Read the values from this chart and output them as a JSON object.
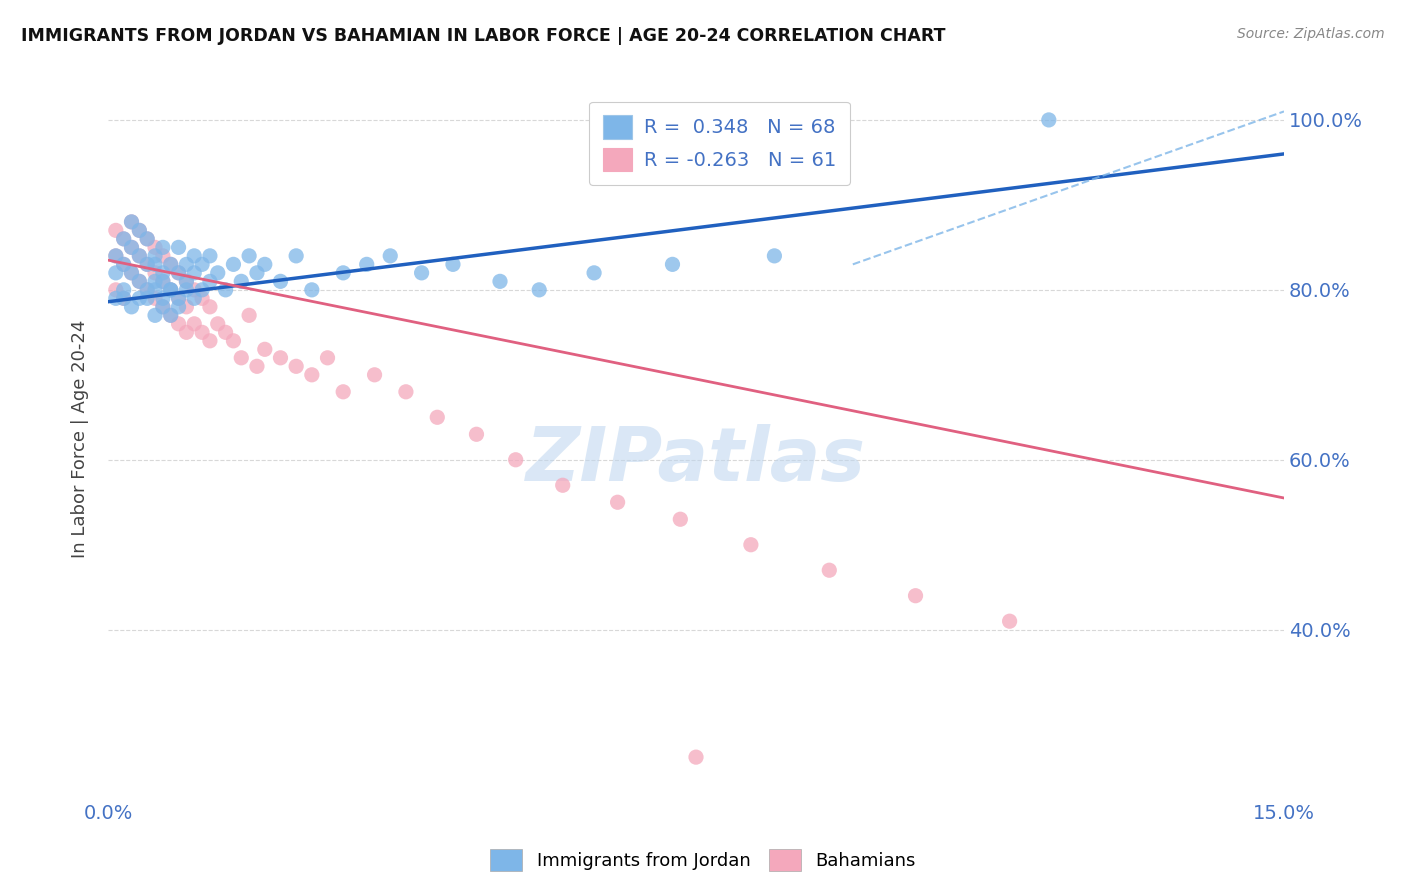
{
  "title": "IMMIGRANTS FROM JORDAN VS BAHAMIAN IN LABOR FORCE | AGE 20-24 CORRELATION CHART",
  "source": "Source: ZipAtlas.com",
  "ylabel": "In Labor Force | Age 20-24",
  "xlim": [
    0.0,
    0.15
  ],
  "ylim": [
    0.2,
    1.05
  ],
  "jordan_R": 0.348,
  "jordan_N": 68,
  "bahamas_R": -0.263,
  "bahamas_N": 61,
  "jordan_color": "#7EB6E8",
  "bahamas_color": "#F4A8BC",
  "jordan_line_color": "#2060BF",
  "bahamas_line_color": "#E06080",
  "watermark": "ZIPatlas",
  "background_color": "#FFFFFF",
  "grid_color": "#D8D8D8",
  "jordan_line_x": [
    0.0,
    0.15
  ],
  "jordan_line_y": [
    0.786,
    0.96
  ],
  "bahamas_line_x": [
    0.0,
    0.15
  ],
  "bahamas_line_y": [
    0.835,
    0.555
  ],
  "dashed_line_x": [
    0.095,
    0.15
  ],
  "dashed_line_y": [
    0.83,
    1.01
  ],
  "jordan_scatter_x": [
    0.001,
    0.001,
    0.001,
    0.002,
    0.002,
    0.002,
    0.002,
    0.003,
    0.003,
    0.003,
    0.003,
    0.004,
    0.004,
    0.004,
    0.004,
    0.005,
    0.005,
    0.005,
    0.005,
    0.006,
    0.006,
    0.006,
    0.006,
    0.006,
    0.007,
    0.007,
    0.007,
    0.007,
    0.007,
    0.008,
    0.008,
    0.008,
    0.008,
    0.009,
    0.009,
    0.009,
    0.009,
    0.01,
    0.01,
    0.01,
    0.011,
    0.011,
    0.011,
    0.012,
    0.012,
    0.013,
    0.013,
    0.014,
    0.015,
    0.016,
    0.017,
    0.018,
    0.019,
    0.02,
    0.022,
    0.024,
    0.026,
    0.03,
    0.033,
    0.036,
    0.04,
    0.044,
    0.05,
    0.055,
    0.062,
    0.072,
    0.085,
    0.12
  ],
  "jordan_scatter_y": [
    0.79,
    0.82,
    0.84,
    0.8,
    0.83,
    0.86,
    0.79,
    0.82,
    0.85,
    0.88,
    0.78,
    0.81,
    0.84,
    0.87,
    0.79,
    0.8,
    0.83,
    0.86,
    0.79,
    0.81,
    0.84,
    0.77,
    0.8,
    0.83,
    0.79,
    0.82,
    0.85,
    0.78,
    0.81,
    0.8,
    0.83,
    0.77,
    0.8,
    0.79,
    0.82,
    0.85,
    0.78,
    0.8,
    0.83,
    0.81,
    0.84,
    0.79,
    0.82,
    0.8,
    0.83,
    0.81,
    0.84,
    0.82,
    0.8,
    0.83,
    0.81,
    0.84,
    0.82,
    0.83,
    0.81,
    0.84,
    0.8,
    0.82,
    0.83,
    0.84,
    0.82,
    0.83,
    0.81,
    0.8,
    0.82,
    0.83,
    0.84,
    1.0
  ],
  "bahamas_scatter_x": [
    0.001,
    0.001,
    0.001,
    0.002,
    0.002,
    0.002,
    0.003,
    0.003,
    0.003,
    0.004,
    0.004,
    0.004,
    0.005,
    0.005,
    0.005,
    0.006,
    0.006,
    0.006,
    0.007,
    0.007,
    0.007,
    0.008,
    0.008,
    0.008,
    0.009,
    0.009,
    0.009,
    0.01,
    0.01,
    0.01,
    0.011,
    0.011,
    0.012,
    0.012,
    0.013,
    0.013,
    0.014,
    0.015,
    0.016,
    0.017,
    0.018,
    0.019,
    0.02,
    0.022,
    0.024,
    0.026,
    0.028,
    0.03,
    0.034,
    0.038,
    0.042,
    0.047,
    0.052,
    0.058,
    0.065,
    0.073,
    0.082,
    0.092,
    0.103,
    0.115,
    0.075
  ],
  "bahamas_scatter_y": [
    0.84,
    0.87,
    0.8,
    0.83,
    0.86,
    0.79,
    0.85,
    0.88,
    0.82,
    0.84,
    0.87,
    0.81,
    0.83,
    0.86,
    0.8,
    0.82,
    0.85,
    0.79,
    0.81,
    0.84,
    0.78,
    0.8,
    0.83,
    0.77,
    0.79,
    0.82,
    0.76,
    0.78,
    0.81,
    0.75,
    0.8,
    0.76,
    0.79,
    0.75,
    0.78,
    0.74,
    0.76,
    0.75,
    0.74,
    0.72,
    0.77,
    0.71,
    0.73,
    0.72,
    0.71,
    0.7,
    0.72,
    0.68,
    0.7,
    0.68,
    0.65,
    0.63,
    0.6,
    0.57,
    0.55,
    0.53,
    0.5,
    0.47,
    0.44,
    0.41,
    0.25
  ],
  "yticks": [
    0.4,
    0.6,
    0.8,
    1.0
  ],
  "ytick_labels": [
    "40.0%",
    "60.0%",
    "80.0%",
    "100.0%"
  ]
}
